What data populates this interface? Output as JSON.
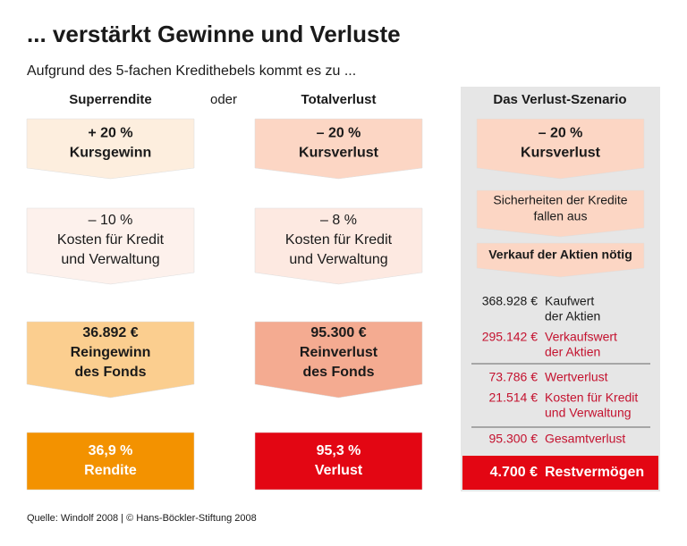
{
  "title": "... verstärkt Gewinne und Verluste",
  "subtitle": "Aufgrund des 5-fachen Kredithebels kommt es zu ...",
  "or_label": "oder",
  "columns": [
    {
      "header": "Superrendite",
      "boxes": [
        {
          "lines": [
            "+ 20 %",
            "Kursgewinn"
          ]
        },
        {
          "lines": [
            "– 10 %",
            "Kosten für Kredit",
            "und Verwaltung"
          ]
        },
        {
          "lines": [
            "36.892 €",
            "Reingewinn",
            "des Fonds"
          ]
        },
        {
          "lines": [
            "36,9 %",
            "Rendite"
          ]
        }
      ]
    },
    {
      "header": "Totalverlust",
      "boxes": [
        {
          "lines": [
            "– 20 %",
            "Kursverlust"
          ]
        },
        {
          "lines": [
            "– 8 %",
            "Kosten für Kredit",
            "und Verwaltung"
          ]
        },
        {
          "lines": [
            "95.300 €",
            "Reinverlust",
            "des Fonds"
          ]
        },
        {
          "lines": [
            "95,3 %",
            "Verlust"
          ]
        }
      ]
    }
  ],
  "scenario": {
    "header": "Das Verlust-Szenario",
    "boxes": [
      {
        "lines": [
          "– 20 %",
          "Kursverlust"
        ]
      },
      {
        "lines": [
          "Sicherheiten der Kredite",
          "fallen aus"
        ]
      },
      {
        "lines": [
          "Verkauf der Aktien nötig"
        ]
      }
    ],
    "rows": [
      {
        "amount": "368.928 €",
        "label": [
          "Kaufwert",
          "der Aktien"
        ]
      },
      {
        "amount": "295.142 €",
        "label": [
          "Verkaufswert",
          "der Aktien"
        ]
      },
      {
        "amount": "73.786 €",
        "label": [
          "Wertverlust"
        ]
      },
      {
        "amount": "21.514 €",
        "label": [
          "Kosten für Kredit",
          "und Verwaltung"
        ]
      },
      {
        "amount": "95.300 €",
        "label": [
          "Gesamtverlust"
        ]
      }
    ],
    "total": {
      "amount": "4.700 €",
      "label": "Restvermögen"
    }
  },
  "source": "Quelle: Windolf 2008 | © Hans-Böckler-Stiftung 2008"
}
